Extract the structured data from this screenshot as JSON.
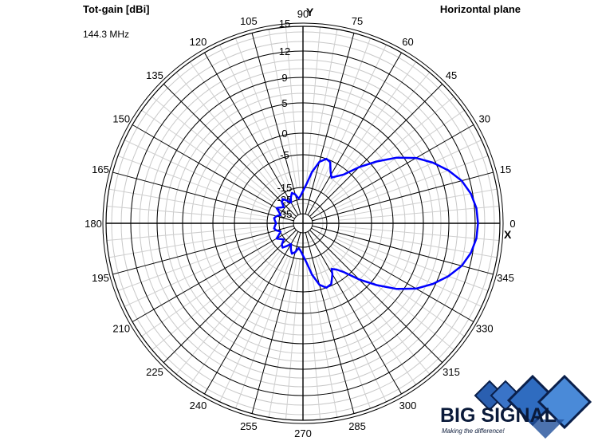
{
  "header": {
    "title": "Tot-gain [dBi]",
    "frequency": "144.3 MHz",
    "plane": "Horizontal plane"
  },
  "axes": {
    "x_axis_name": "X",
    "y_axis_name": "Y"
  },
  "logo": {
    "text": "BIG SIGNAL",
    "tagline": "Making the difference!"
  },
  "chart_data": {
    "type": "polar",
    "title": "Tot-gain [dBi]",
    "subtitle": "144.3 MHz",
    "plane": "Horizontal plane",
    "angle_unit": "degrees",
    "angle_ticks": [
      0,
      15,
      30,
      45,
      60,
      75,
      90,
      105,
      120,
      135,
      150,
      165,
      180,
      195,
      210,
      225,
      240,
      255,
      270,
      285,
      300,
      315,
      330,
      345
    ],
    "radial_labels": [
      15,
      12,
      9,
      5,
      0,
      -5,
      -15,
      -25,
      -35
    ],
    "radial_range_dbi": [
      -36,
      15
    ],
    "grid": true,
    "series": [
      {
        "color": "#0000ff",
        "angles": [
          0,
          5,
          10,
          15,
          20,
          25,
          30,
          35,
          40,
          45,
          50,
          55,
          58,
          62,
          66,
          70,
          75,
          80,
          85,
          90,
          95,
          100,
          105,
          110,
          115,
          120,
          125,
          130,
          135,
          140,
          145,
          150,
          155,
          160,
          165,
          170,
          175,
          180,
          185,
          190,
          195,
          200,
          205,
          210,
          215,
          220,
          225,
          230,
          235,
          240,
          245,
          250,
          255,
          260,
          265,
          270,
          275,
          280,
          285,
          290,
          295,
          300,
          302,
          306,
          310,
          315,
          320,
          325,
          330,
          335,
          340,
          345,
          350,
          355
        ],
        "gain_dbi": [
          12.3,
          12.2,
          11.8,
          11.1,
          10.0,
          8.6,
          6.6,
          4.0,
          1.0,
          -2.5,
          -6.5,
          -8.5,
          -9.5,
          -8.0,
          -5.5,
          -5.0,
          -6.5,
          -10.0,
          -14.0,
          -18.0,
          -22.0,
          -24.0,
          -20.0,
          -18.0,
          -21.0,
          -25.0,
          -22.0,
          -18.5,
          -20.0,
          -24.0,
          -22.0,
          -19.5,
          -23.0,
          -25.0,
          -22.0,
          -20.5,
          -21.5,
          -22.5,
          -21.5,
          -20.5,
          -22.0,
          -25.0,
          -23.0,
          -19.5,
          -22.0,
          -24.0,
          -20.0,
          -18.5,
          -22.0,
          -25.0,
          -21.0,
          -18.0,
          -20.0,
          -24.0,
          -22.0,
          -18.0,
          -14.0,
          -10.0,
          -6.5,
          -5.0,
          -5.5,
          -8.0,
          -9.5,
          -8.5,
          -6.5,
          -2.5,
          1.0,
          4.0,
          6.6,
          8.6,
          10.0,
          11.1,
          11.8,
          12.2
        ]
      }
    ]
  }
}
